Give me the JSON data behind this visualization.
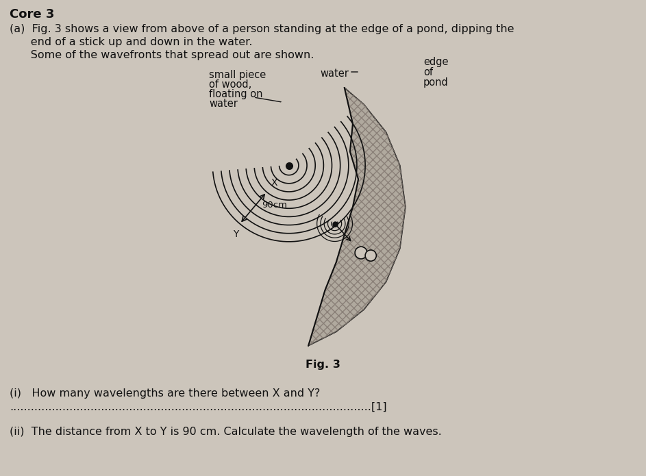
{
  "bg_color": "#ccc5bb",
  "line_color": "#111111",
  "shore_color": "#b0a99e",
  "shore_hatch_color": "#9a9088",
  "title": "Core 3",
  "label_a_line1": "(a)  Fig. 3 shows a view from above of a person standing at the edge of a pond, dipping the",
  "label_a_line2": "      end of a stick up and down in the water.",
  "label_a_line3": "      Some of the wavefronts that spread out are shown.",
  "fig_label": "Fig. 3",
  "q_i_text": "(i)   How many wavelengths are there between X and Y? ",
  "q_i_dots": ".......................................................................................................[1]",
  "q_ii_text": "(ii)  The distance from X to Y is 90 cm. Calculate the wavelength of the waves.",
  "label_wood": "small piece\nof wood,\nfloating on\nwater",
  "label_water": "water",
  "label_edge1": "edge",
  "label_edge2": "of",
  "label_edge3": "pond",
  "label_90cm": "90cm",
  "label_X": "X",
  "label_Y": "Y",
  "title_fontsize": 13,
  "body_fontsize": 11.5,
  "diag_fontsize": 10.5
}
